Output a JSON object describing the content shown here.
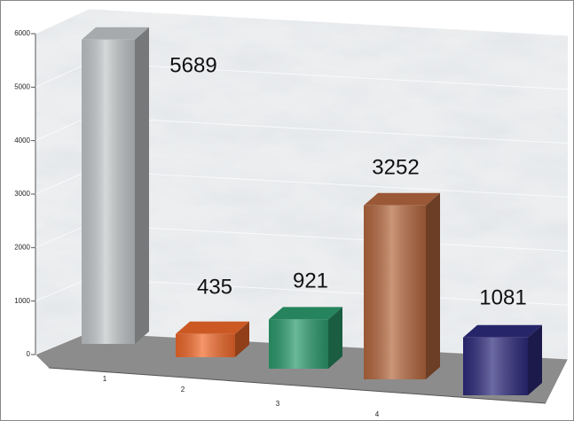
{
  "chart_data": {
    "type": "bar3d",
    "categories": [
      "1",
      "2",
      "3",
      "4",
      null
    ],
    "values": [
      5689,
      435,
      921,
      3252,
      1081
    ],
    "colors": [
      "#c4c8ca",
      "#f0692a",
      "#2b9b6c",
      "#b5683f",
      "#2e2b7c"
    ],
    "ylim": [
      0,
      6000
    ],
    "yticks": [
      0,
      1000,
      2000,
      3000,
      4000,
      5000,
      6000
    ],
    "grid": true
  }
}
